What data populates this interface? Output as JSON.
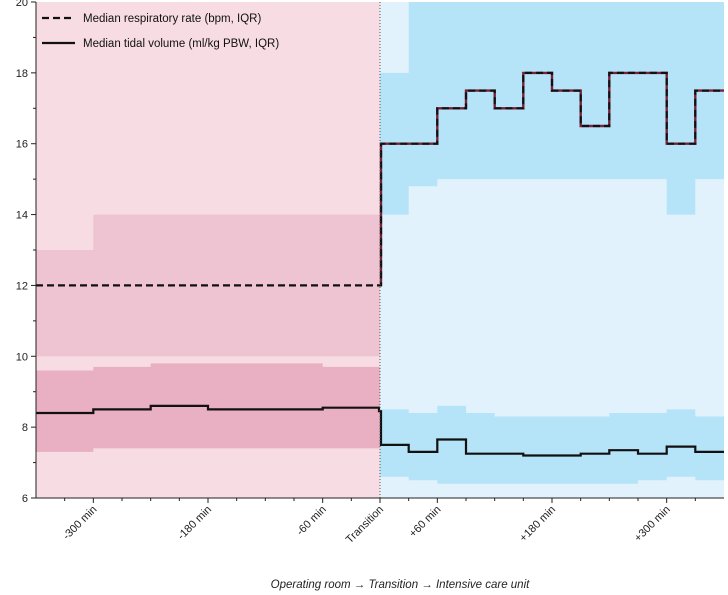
{
  "chart_data": {
    "type": "line",
    "xlabel": "Operating room → Transition → Intensive care unit",
    "ylabel": "",
    "ylim": [
      6,
      20
    ],
    "xlim": [
      -360,
      360
    ],
    "y_ticks": [
      6,
      8,
      10,
      12,
      14,
      16,
      18,
      20
    ],
    "x_ticks": [
      {
        "value": -300,
        "label": "-300 min"
      },
      {
        "value": -180,
        "label": "-180 min"
      },
      {
        "value": -60,
        "label": "-60 min"
      },
      {
        "value": 0,
        "label": "Transition"
      },
      {
        "value": 60,
        "label": "+60 min"
      },
      {
        "value": 180,
        "label": "+180 min"
      },
      {
        "value": 300,
        "label": "+300 min"
      }
    ],
    "legend_position": "top-left",
    "grid": false,
    "regions": [
      {
        "x_from": -360,
        "x_to": 0,
        "color": "#f7dde3"
      },
      {
        "x_from": 0,
        "x_to": 360,
        "color": "#e2f2fc"
      }
    ],
    "series": [
      {
        "name": "Median respiratory rate (bpm, IQR)",
        "style": "dashed",
        "color": "#111111",
        "icu_overlay_color": "#7a1f3c",
        "x": [
          -360,
          -300,
          -240,
          -180,
          -120,
          -60,
          -1,
          1,
          30,
          60,
          90,
          120,
          150,
          180,
          210,
          240,
          270,
          300,
          330,
          360
        ],
        "values": [
          12,
          12,
          12,
          12,
          12,
          12,
          12,
          16,
          16,
          17,
          17.5,
          17,
          18,
          17.5,
          16.5,
          18,
          18,
          16,
          17.5,
          17.5
        ],
        "iqr_low": [
          10,
          10,
          10,
          10,
          10,
          10,
          10,
          14,
          14.8,
          15,
          15,
          15,
          15,
          15,
          15,
          15,
          15,
          14,
          15,
          15
        ],
        "iqr_high": [
          13,
          14,
          14,
          14,
          14,
          14,
          14,
          18,
          20,
          20,
          20,
          20,
          20,
          20,
          20,
          20,
          20,
          20,
          20,
          20
        ],
        "band_color_or": "#eec3d2",
        "band_color_icu": "#b5e3f8"
      },
      {
        "name": "Median tidal volume (ml/kg PBW, IQR)",
        "style": "solid",
        "color": "#111111",
        "x": [
          -360,
          -300,
          -240,
          -180,
          -120,
          -60,
          -1,
          1,
          30,
          60,
          90,
          120,
          150,
          180,
          210,
          240,
          270,
          300,
          330,
          360
        ],
        "values": [
          8.4,
          8.5,
          8.6,
          8.5,
          8.5,
          8.55,
          8.45,
          7.5,
          7.3,
          7.65,
          7.25,
          7.25,
          7.2,
          7.2,
          7.25,
          7.35,
          7.25,
          7.45,
          7.3,
          7.3
        ],
        "iqr_low": [
          7.3,
          7.4,
          7.4,
          7.4,
          7.4,
          7.4,
          7.4,
          6.6,
          6.5,
          6.4,
          6.4,
          6.4,
          6.4,
          6.4,
          6.4,
          6.4,
          6.5,
          6.6,
          6.5,
          6.4
        ],
        "iqr_high": [
          9.6,
          9.7,
          9.8,
          9.8,
          9.8,
          9.7,
          9.6,
          8.5,
          8.4,
          8.6,
          8.4,
          8.3,
          8.3,
          8.3,
          8.3,
          8.4,
          8.4,
          8.5,
          8.3,
          8.3
        ],
        "band_color_or": "#e9afc3",
        "band_color_icu": "#b5e3f8"
      }
    ]
  }
}
